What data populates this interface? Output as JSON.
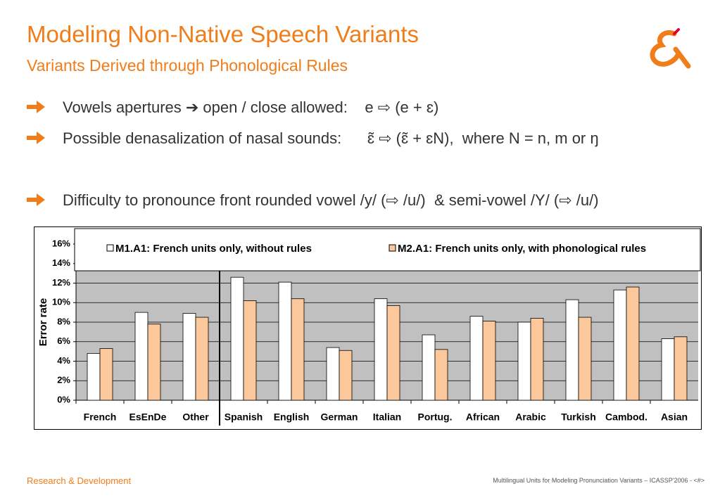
{
  "slide": {
    "title": "Modeling Non-Native Speech Variants",
    "subtitle": "Variants Derived through Phonological Rules",
    "bullets": [
      "Vowels apertures ➔ open / close allowed:    e ⇨ (e + ɛ)",
      "Possible denasalization of nasal sounds:      ɛ̃ ⇨ (ɛ̃ + ɛN),  where N = n, m or ŋ",
      "Difficulty to pronounce front rounded vowel /y/ (⇨ /u/)  & semi-vowel /Y/ (⇨ /u/)"
    ],
    "footer_left": "Research & Development",
    "footer_right": "Multilingual Units for Modeling Pronunciation Variants – ICASSP'2006 - <#>"
  },
  "chart_data": {
    "type": "bar",
    "y_label": "Error rate",
    "categories": [
      "French",
      "EsEnDe",
      "Other",
      "Spanish",
      "English",
      "German",
      "Italian",
      "Portug.",
      "African",
      "Arabic",
      "Turkish",
      "Cambod.",
      "Asian"
    ],
    "series": [
      {
        "name": "M1.A1: French units only, without rules",
        "color": "#ffffff",
        "values": [
          4.8,
          9.0,
          8.9,
          12.6,
          12.1,
          5.4,
          10.4,
          6.7,
          8.6,
          8.0,
          10.3,
          11.3,
          6.3
        ]
      },
      {
        "name": "M2.A1: French units only, with phonological rules",
        "color": "#fcc89b",
        "values": [
          5.3,
          7.8,
          8.5,
          10.2,
          10.4,
          5.1,
          9.7,
          5.2,
          8.1,
          8.4,
          8.5,
          11.6,
          6.5
        ]
      }
    ],
    "ylim": [
      0,
      16
    ],
    "yticks": [
      {
        "value": 0,
        "label": "0%"
      },
      {
        "value": 2,
        "label": "2%"
      },
      {
        "value": 4,
        "label": "4%"
      },
      {
        "value": 6,
        "label": "6%"
      },
      {
        "value": 8,
        "label": "8%"
      },
      {
        "value": 10,
        "label": "10%"
      },
      {
        "value": 12,
        "label": "12%"
      },
      {
        "value": 14,
        "label": "14%"
      },
      {
        "value": 16,
        "label": "16%"
      }
    ],
    "grid": true
  }
}
